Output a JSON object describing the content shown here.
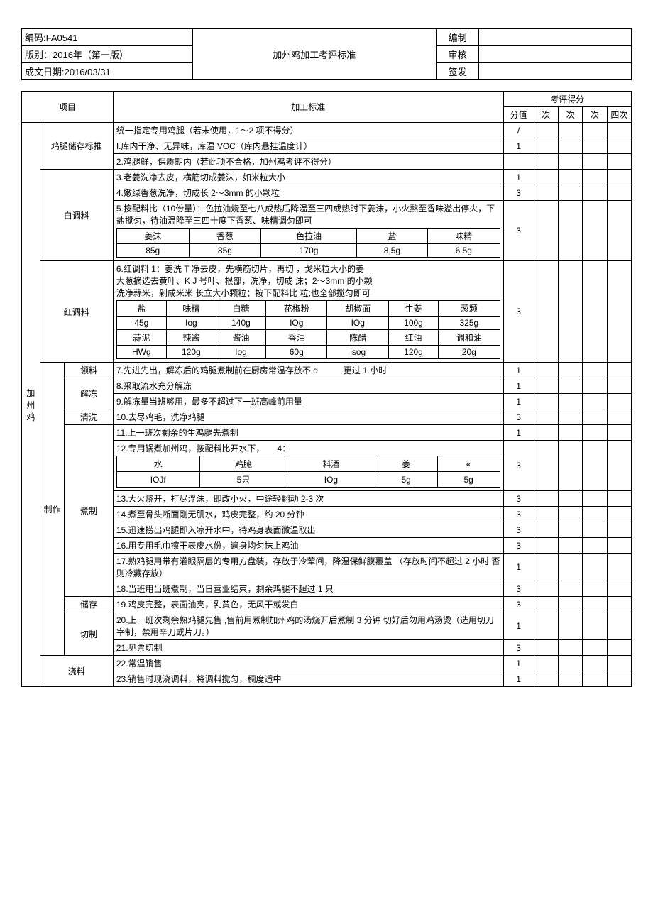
{
  "header": {
    "code": "编码:FA0541",
    "edition": "版别：2016年（第一版）",
    "date": "成文日期:2016/03/31",
    "title": "加州鸡加工考评标准",
    "compile": "编制",
    "review": "审核",
    "sign": "签发"
  },
  "cols": {
    "project": "项目",
    "standard": "加工标准",
    "score_title": "考评得分",
    "score_val": "分值",
    "s1": "次",
    "s2": "次",
    "s3": "次",
    "s4": "四次"
  },
  "cat": "加州鸡",
  "rows": {
    "leg_store": "鸡腿储存标推",
    "bai": "白调料",
    "hong": "红调料",
    "zhizuo": "制作",
    "ling": "领料",
    "jiedong": "解冻",
    "qingxi": "清洗",
    "zhuzhi": "煮制",
    "chucun": "储存",
    "qiezhi": "切制",
    "jiaoliao": "浇料"
  },
  "std": {
    "r0": "统一指定专用鸡腿（若未使用，1～2 项不得分）",
    "r1": "I.库内干净、无异味，库温 VOC（库内悬挂温度计）",
    "r2": "2.鸡腿鲜，保质期内（若此项不合格，加州鸡考评不得分）",
    "r3": "3.老姜洗净去皮，横筋切成姜沫，如米粒大小",
    "r4": "4.嫩绿香葱洗净，切成长 2～3mm 的小颗粒",
    "r5": "5.按配料比（10份量）：色拉油烧至七八成热后降温至三四成热时下姜沫，小火熬至香味溢出停火，下盐搅匀，待油温降至三四十度下香葱、味精调匀即可",
    "r6a": "6.红调料 1：姜洗 T",
    "r6b": "净去皮，先横筋切片，再切",
    "r6c": "，戈米粒大小的姜",
    "r6d": "大葱摘选去黄叶、K",
    "r6e": "J 号叶、根部，洗净，切成",
    "r6f": "沫；2～3mm 的小颗",
    "r6g": "洗净蒜米，剁成米米",
    "r6h": "长立大小颗粒；按下配料比",
    "r6i": "粒;也全部搅匀即可",
    "r7": "7.先进先出，解冻后的鸡腿煮制前在厨房常温存放不 d",
    "r7b": "更过 1 小时",
    "r8": "8.采取流水充分解冻",
    "r9": "9.解冻量当班够用，最多不超过下一班高峰前用量",
    "r10": "10.去尽鸡毛，洗净鸡腿",
    "r11": "11.上一班次剩余的生鸡腿先煮制",
    "r12": "12.专用锅煮加州鸡，按配料比开水下，",
    "r12b": "4：",
    "r13": "13.大火烧开，打尽浮沫，即改小火，中途轻翻动 2-3 次",
    "r14": "14.煮至骨头断面刚无肌水，鸡皮完整，约 20 分钟",
    "r15": "15.迅速捞出鸡腿即入凉开水中，待鸡身表面微温取出",
    "r16": "16.用专用毛巾擦干表皮水份，遍身均匀抹上鸡油",
    "r17": "17.熟鸡腿用带有灌眼隔层的专用方盘装，存放于冷荤间，降温保鲜膜覆盖 （存放时间不超过 2 小时 否则冷藏存放）",
    "r18": "18.当班用当班煮制，当日营业结束，剩余鸡腿不超过 1 只",
    "r19": "19.鸡皮完整，表面油亮，乳黄色，无风干或发白",
    "r20": "20.上一班次剩余熟鸡腿先售 ,售前用煮制加州鸡的汤烧开后煮制 3 分钟 切好后勿用鸡汤烫（选用切刀宰制，禁用辛刀或片刀。）",
    "r21": "21.见票切制",
    "r22": "22.常温销售",
    "r23": "23.销售时现浇调料，将调料搅匀，稠度适中"
  },
  "scores": {
    "r0": "/",
    "r1": "1",
    "r3": "1",
    "r4": "3",
    "r5": "3",
    "r6": "3",
    "r7": "1",
    "r8": "1",
    "r9": "1",
    "r10": "3",
    "r11": "1",
    "r12": "3",
    "r13": "3",
    "r14": "3",
    "r15": "3",
    "r16": "3",
    "r17": "1",
    "r18": "3",
    "r19": "3",
    "r20": "1",
    "r21": "3",
    "r22": "1",
    "r23": "1"
  },
  "inner_bai": {
    "h": [
      "姜沫",
      "香葱",
      "色拉油",
      "盐",
      "味精"
    ],
    "v": [
      "85g",
      "85g",
      "170g",
      "8,5g",
      "6.5g"
    ]
  },
  "inner_hong": {
    "h1": [
      "盐",
      "味精",
      "白糖",
      "花椒粉",
      "胡椒面",
      "生姜",
      "葱颗"
    ],
    "v1": [
      "45g",
      "Iog",
      "140g",
      "IOg",
      "IOg",
      "100g",
      "325g"
    ],
    "h2": [
      "蒜泥",
      "辣酱",
      "酱油",
      "香油",
      "陈醋",
      "红油",
      "调和油"
    ],
    "v2": [
      "HWg",
      "120g",
      "Iog",
      "60g",
      "isog",
      "120g",
      "20g"
    ]
  },
  "inner_cook": {
    "h": [
      "水",
      "鸡腌",
      "料酒",
      "姜",
      "«"
    ],
    "v": [
      "IOJf",
      "5只",
      "IOg",
      "5g",
      "5g"
    ]
  }
}
